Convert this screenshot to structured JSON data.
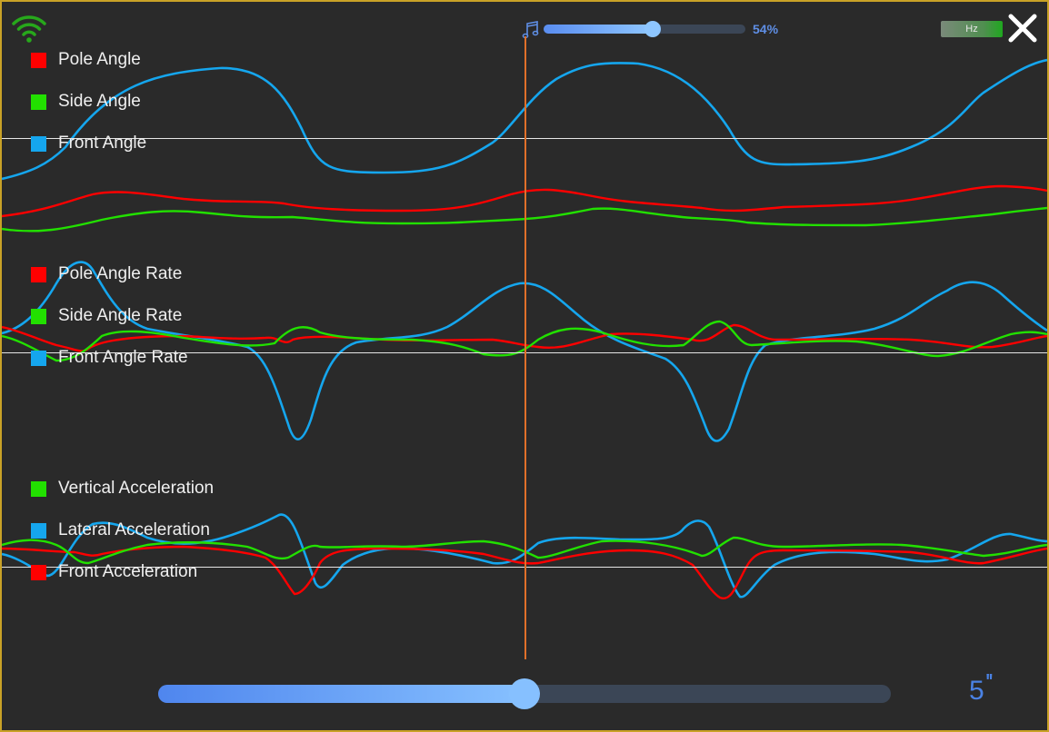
{
  "colors": {
    "red": "#ff0000",
    "green": "#22e000",
    "blue": "#15a6ee",
    "cursor": "#e0702a",
    "accent": "#4a82e4",
    "frame": "#c9a227",
    "wifi": "#27a81b"
  },
  "header": {
    "wifi_icon": "wifi-icon",
    "music_icon": "music-note-icon",
    "volume_percent": 54,
    "volume_label": "54%",
    "hz_label": "Hz",
    "close_icon": "close-icon"
  },
  "panels": [
    {
      "legend": [
        {
          "label": "Pole Angle",
          "color": "#ff0000"
        },
        {
          "label": "Side Angle",
          "color": "#22e000"
        },
        {
          "label": "Front Angle",
          "color": "#15a6ee"
        }
      ]
    },
    {
      "legend": [
        {
          "label": "Pole Angle Rate",
          "color": "#ff0000"
        },
        {
          "label": "Side Angle Rate",
          "color": "#22e000"
        },
        {
          "label": "Front Angle Rate",
          "color": "#15a6ee"
        }
      ]
    },
    {
      "legend": [
        {
          "label": "Vertical Acceleration",
          "color": "#22e000"
        },
        {
          "label": "Lateral Acceleration",
          "color": "#15a6ee"
        },
        {
          "label": "Front Acceleration",
          "color": "#ff0000"
        }
      ]
    }
  ],
  "playback": {
    "position_fraction": 0.5,
    "time_value": "5",
    "time_unit": "''"
  }
}
